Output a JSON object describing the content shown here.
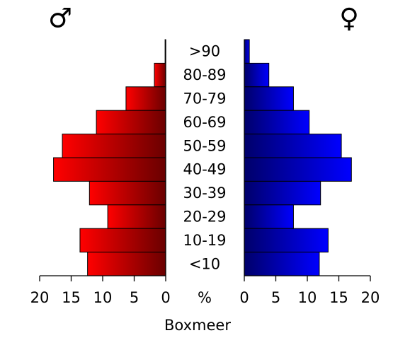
{
  "chart_data": {
    "type": "pyramid",
    "title": "Boxmeer",
    "x_axis_label": "%",
    "categories": [
      ">90",
      "80-89",
      "70-79",
      "60-69",
      "50-59",
      "40-49",
      "30-39",
      "20-29",
      "10-19",
      "<10"
    ],
    "series": [
      {
        "name": "♂",
        "color": "#ff0000",
        "values": [
          0.1,
          1.8,
          6.3,
          11.0,
          16.4,
          17.8,
          12.1,
          9.2,
          13.6,
          12.4
        ]
      },
      {
        "name": "♀",
        "color": "#0000ff",
        "values": [
          0.8,
          3.9,
          7.8,
          10.3,
          15.4,
          17.0,
          12.1,
          7.8,
          13.3,
          11.9
        ]
      }
    ],
    "xlim": [
      0,
      20
    ],
    "xticks": [
      0,
      5,
      10,
      15,
      20
    ]
  }
}
